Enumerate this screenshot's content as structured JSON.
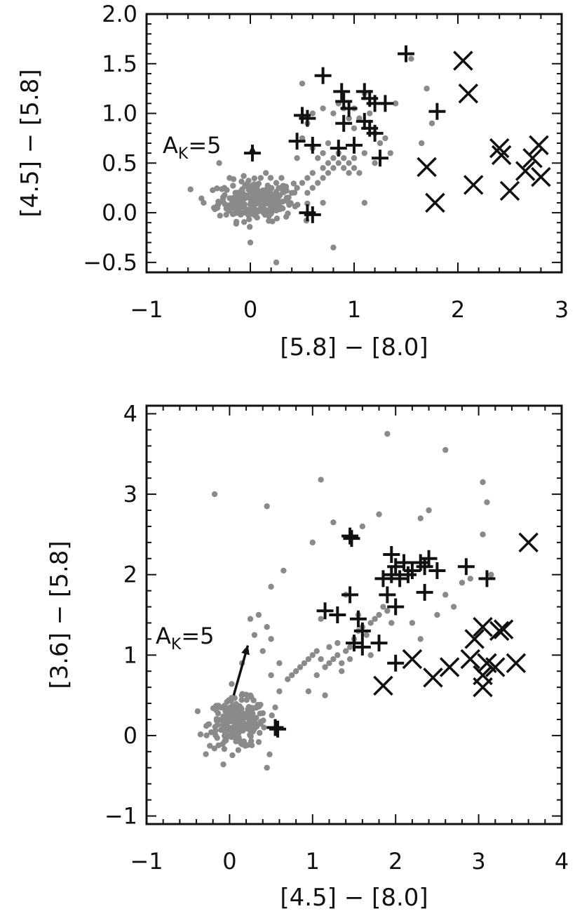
{
  "chart_data": [
    {
      "type": "scatter",
      "xlabel": "[5.8] − [8.0]",
      "ylabel": "[4.5] − [5.8]",
      "xlim": [
        -1,
        3
      ],
      "ylim": [
        -0.6,
        2.0
      ],
      "x_ticks": [
        "−1",
        "0",
        "1",
        "2",
        "3"
      ],
      "y_ticks": [
        "−0.5",
        "0.0",
        "0.5",
        "1.0",
        "1.5",
        "2.0"
      ],
      "annotation": {
        "main": "A",
        "sub": "K",
        "rest": "=5"
      },
      "reddening_vector": {
        "from": [
          0.02,
          0.55
        ],
        "to": [
          0.02,
          0.68
        ]
      },
      "colors": {
        "background": "#8a8a8a",
        "plus": "#111111",
        "cross": "#111111"
      },
      "series": [
        {
          "marker": "dot",
          "cluster": {
            "center": [
              0.05,
              0.12
            ],
            "spread": [
              0.18,
              0.1
            ],
            "count": 260
          },
          "points": [
            [
              -0.3,
              0.5
            ],
            [
              -0.2,
              0.35
            ],
            [
              -0.45,
              0.1
            ],
            [
              -0.35,
              0.05
            ],
            [
              -0.25,
              0.25
            ],
            [
              0.0,
              -0.3
            ],
            [
              0.25,
              -0.5
            ],
            [
              0.3,
              0.05
            ],
            [
              0.35,
              0.15
            ],
            [
              0.4,
              0.2
            ],
            [
              0.45,
              0.25
            ],
            [
              0.5,
              0.3
            ],
            [
              0.55,
              0.35
            ],
            [
              0.55,
              0.2
            ],
            [
              0.6,
              0.25
            ],
            [
              0.6,
              0.4
            ],
            [
              0.65,
              0.3
            ],
            [
              0.7,
              0.45
            ],
            [
              0.7,
              0.35
            ],
            [
              0.75,
              0.5
            ],
            [
              0.75,
              0.4
            ],
            [
              0.8,
              0.55
            ],
            [
              0.8,
              0.45
            ],
            [
              0.85,
              0.5
            ],
            [
              0.85,
              0.6
            ],
            [
              0.9,
              0.55
            ],
            [
              0.9,
              0.45
            ],
            [
              0.95,
              0.5
            ],
            [
              0.95,
              0.4
            ],
            [
              1.0,
              0.45
            ],
            [
              1.0,
              0.55
            ],
            [
              1.05,
              0.4
            ],
            [
              0.65,
              0.55
            ],
            [
              0.7,
              0.6
            ],
            [
              0.6,
              0.65
            ],
            [
              0.75,
              0.7
            ],
            [
              0.8,
              -0.35
            ],
            [
              0.7,
              0.1
            ],
            [
              0.45,
              0.55
            ],
            [
              0.5,
              0.75
            ],
            [
              0.55,
              0.9
            ],
            [
              0.5,
              1.3
            ],
            [
              0.6,
              1.0
            ],
            [
              0.7,
              1.05
            ],
            [
              0.8,
              1.0
            ],
            [
              0.85,
              1.1
            ],
            [
              0.9,
              1.05
            ],
            [
              0.95,
              0.95
            ],
            [
              1.0,
              1.05
            ],
            [
              1.1,
              1.2
            ],
            [
              1.15,
              1.0
            ],
            [
              1.2,
              0.8
            ],
            [
              1.25,
              0.7
            ],
            [
              1.3,
              0.75
            ],
            [
              1.35,
              0.6
            ],
            [
              1.05,
              0.95
            ],
            [
              1.0,
              0.85
            ],
            [
              1.1,
              0.6
            ],
            [
              1.2,
              0.5
            ],
            [
              1.1,
              0.1
            ],
            [
              1.55,
              1.55
            ],
            [
              1.7,
              1.25
            ],
            [
              1.75,
              0.9
            ],
            [
              1.65,
              0.7
            ],
            [
              1.4,
              1.1
            ],
            [
              0.2,
              0.25
            ],
            [
              0.25,
              0.3
            ],
            [
              0.3,
              0.35
            ],
            [
              0.15,
              0.4
            ],
            [
              0.1,
              0.35
            ]
          ]
        },
        {
          "marker": "plus",
          "points": [
            [
              0.7,
              1.38
            ],
            [
              0.88,
              1.22
            ],
            [
              0.9,
              1.12
            ],
            [
              0.95,
              1.05
            ],
            [
              1.1,
              1.22
            ],
            [
              1.15,
              1.15
            ],
            [
              1.2,
              1.1
            ],
            [
              1.3,
              1.1
            ],
            [
              0.5,
              0.98
            ],
            [
              0.55,
              0.95
            ],
            [
              0.9,
              0.9
            ],
            [
              1.1,
              0.92
            ],
            [
              1.15,
              0.85
            ],
            [
              1.2,
              0.8
            ],
            [
              0.45,
              0.72
            ],
            [
              0.6,
              0.68
            ],
            [
              0.85,
              0.65
            ],
            [
              1.0,
              0.68
            ],
            [
              1.25,
              0.55
            ],
            [
              1.5,
              1.6
            ],
            [
              1.8,
              1.02
            ],
            [
              0.02,
              0.6
            ],
            [
              0.55,
              0.0
            ],
            [
              0.6,
              -0.02
            ]
          ]
        },
        {
          "marker": "cross",
          "points": [
            [
              2.05,
              1.53
            ],
            [
              2.1,
              1.2
            ],
            [
              1.7,
              0.46
            ],
            [
              1.78,
              0.1
            ],
            [
              2.15,
              0.28
            ],
            [
              2.4,
              0.65
            ],
            [
              2.42,
              0.58
            ],
            [
              2.5,
              0.22
            ],
            [
              2.65,
              0.42
            ],
            [
              2.78,
              0.68
            ],
            [
              2.8,
              0.36
            ],
            [
              2.72,
              0.55
            ]
          ]
        }
      ]
    },
    {
      "type": "scatter",
      "xlabel": "[4.5] − [8.0]",
      "ylabel": "[3.6] − [5.8]",
      "xlim": [
        -1,
        4
      ],
      "ylim": [
        -1.1,
        4.1
      ],
      "x_ticks": [
        "−1",
        "0",
        "1",
        "2",
        "3",
        "4"
      ],
      "y_ticks": [
        "−1",
        "0",
        "1",
        "2",
        "3",
        "4"
      ],
      "annotation": {
        "main": "A",
        "sub": "K",
        "rest": "=5"
      },
      "reddening_vector": {
        "from": [
          0.05,
          0.5
        ],
        "to": [
          0.22,
          1.12
        ]
      },
      "colors": {
        "background": "#8a8a8a",
        "plus": "#111111",
        "cross": "#111111"
      },
      "series": [
        {
          "marker": "dot",
          "cluster": {
            "center": [
              0.1,
              0.15
            ],
            "spread": [
              0.17,
              0.15
            ],
            "count": 240
          },
          "points": [
            [
              -0.18,
              3.0
            ],
            [
              0.45,
              2.85
            ],
            [
              1.1,
              3.18
            ],
            [
              1.9,
              3.75
            ],
            [
              2.6,
              3.55
            ],
            [
              3.05,
              3.15
            ],
            [
              3.1,
              2.9
            ],
            [
              1.0,
              2.4
            ],
            [
              0.5,
              1.85
            ],
            [
              0.65,
              2.05
            ],
            [
              1.25,
              2.65
            ],
            [
              1.6,
              2.6
            ],
            [
              2.3,
              2.7
            ],
            [
              2.4,
              2.8
            ],
            [
              1.8,
              2.75
            ],
            [
              3.05,
              2.5
            ],
            [
              3.15,
              2.0
            ],
            [
              2.9,
              1.95
            ],
            [
              0.5,
              1.2
            ],
            [
              0.45,
              1.35
            ],
            [
              0.35,
              1.5
            ],
            [
              0.25,
              1.45
            ],
            [
              0.3,
              1.25
            ],
            [
              0.2,
              1.05
            ],
            [
              0.4,
              1.05
            ],
            [
              0.6,
              0.9
            ],
            [
              0.5,
              0.75
            ],
            [
              0.7,
              0.7
            ],
            [
              0.75,
              0.75
            ],
            [
              0.8,
              0.8
            ],
            [
              0.85,
              0.85
            ],
            [
              0.9,
              0.9
            ],
            [
              0.95,
              0.95
            ],
            [
              1.0,
              1.0
            ],
            [
              1.05,
              1.05
            ],
            [
              1.1,
              0.95
            ],
            [
              1.15,
              0.85
            ],
            [
              1.2,
              0.9
            ],
            [
              1.25,
              0.95
            ],
            [
              1.3,
              1.0
            ],
            [
              1.35,
              0.9
            ],
            [
              1.4,
              1.05
            ],
            [
              1.45,
              1.1
            ],
            [
              1.5,
              1.2
            ],
            [
              1.55,
              1.3
            ],
            [
              1.6,
              1.35
            ],
            [
              1.65,
              1.25
            ],
            [
              1.7,
              1.4
            ],
            [
              1.75,
              1.45
            ],
            [
              1.8,
              1.5
            ],
            [
              1.85,
              1.6
            ],
            [
              1.9,
              1.55
            ],
            [
              1.95,
              1.4
            ],
            [
              1.2,
              1.1
            ],
            [
              1.3,
              1.15
            ],
            [
              1.35,
              0.8
            ],
            [
              1.45,
              0.95
            ],
            [
              1.1,
              1.45
            ],
            [
              1.15,
              0.5
            ],
            [
              1.4,
              1.75
            ],
            [
              1.55,
              1.5
            ],
            [
              1.7,
              1.0
            ],
            [
              2.2,
              1.4
            ],
            [
              2.3,
              1.2
            ],
            [
              2.5,
              1.5
            ],
            [
              2.7,
              1.6
            ],
            [
              2.8,
              1.9
            ],
            [
              2.6,
              1.75
            ],
            [
              0.45,
              -0.4
            ],
            [
              0.55,
              0.35
            ],
            [
              0.6,
              0.55
            ],
            [
              0.15,
              0.9
            ],
            [
              0.95,
              0.55
            ],
            [
              1.05,
              0.75
            ]
          ]
        },
        {
          "marker": "plus",
          "points": [
            [
              1.45,
              2.48
            ],
            [
              1.47,
              2.45
            ],
            [
              1.95,
              2.25
            ],
            [
              2.0,
              2.1
            ],
            [
              2.1,
              2.15
            ],
            [
              2.2,
              2.05
            ],
            [
              2.3,
              2.15
            ],
            [
              2.35,
              2.1
            ],
            [
              2.5,
              2.05
            ],
            [
              2.4,
              2.2
            ],
            [
              1.85,
              1.95
            ],
            [
              1.95,
              2.0
            ],
            [
              2.05,
              1.95
            ],
            [
              2.15,
              2.0
            ],
            [
              2.85,
              2.1
            ],
            [
              3.1,
              1.95
            ],
            [
              1.45,
              1.75
            ],
            [
              1.9,
              1.75
            ],
            [
              2.0,
              1.6
            ],
            [
              2.35,
              1.78
            ],
            [
              1.15,
              1.55
            ],
            [
              1.3,
              1.5
            ],
            [
              1.55,
              1.45
            ],
            [
              1.6,
              1.3
            ],
            [
              1.5,
              1.15
            ],
            [
              1.6,
              1.1
            ],
            [
              1.8,
              1.15
            ],
            [
              2.0,
              0.9
            ],
            [
              0.55,
              0.1
            ],
            [
              0.58,
              0.08
            ]
          ]
        },
        {
          "marker": "cross",
          "points": [
            [
              3.6,
              2.4
            ],
            [
              2.95,
              1.2
            ],
            [
              3.05,
              1.35
            ],
            [
              3.25,
              1.3
            ],
            [
              3.3,
              1.32
            ],
            [
              2.2,
              0.95
            ],
            [
              2.65,
              0.85
            ],
            [
              2.9,
              0.95
            ],
            [
              3.1,
              0.9
            ],
            [
              3.2,
              0.85
            ],
            [
              3.45,
              0.9
            ],
            [
              3.05,
              0.75
            ],
            [
              2.45,
              0.72
            ],
            [
              1.85,
              0.62
            ],
            [
              3.05,
              0.6
            ]
          ]
        }
      ]
    }
  ]
}
